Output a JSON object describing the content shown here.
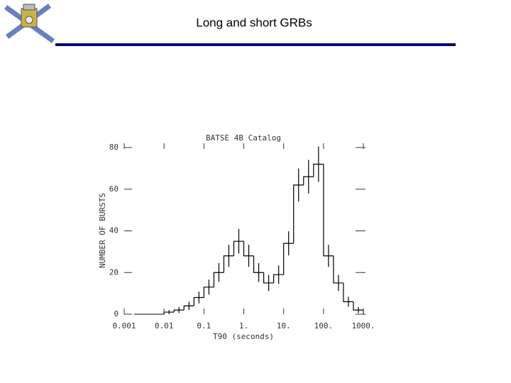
{
  "slide_title": "Long and short GRBs",
  "chart_data": {
    "type": "histogram",
    "title": "BATSE 4B Catalog",
    "x_label": "T90 (seconds)",
    "y_label": "NUMBER OF BURSTS",
    "x_log": true,
    "bins": [
      0.01,
      0.01778,
      0.03162,
      0.05623,
      0.1,
      0.1778,
      0.3162,
      0.5623,
      1,
      1.778,
      3.162,
      5.623,
      10,
      17.78,
      31.62,
      56.23,
      100,
      177.8,
      316.2,
      562.3,
      1000
    ],
    "counts": [
      1,
      2,
      4,
      8,
      13,
      20,
      28,
      35,
      28,
      20,
      15,
      19,
      34,
      62,
      66,
      72,
      28,
      15,
      6,
      2
    ],
    "errors": [
      1,
      1.4,
      2,
      2.8,
      3.6,
      4.5,
      5.3,
      5.9,
      5.3,
      4.5,
      3.9,
      4.4,
      5.8,
      7.9,
      8.1,
      8.5,
      5.3,
      3.9,
      2.4,
      1.4
    ],
    "color": "#000000",
    "xlim": [
      0.001,
      1000
    ],
    "xticks": [
      0.001,
      0.01,
      0.1,
      {
        "value": 1,
        "label": "1."
      },
      {
        "value": 10,
        "label": "10."
      },
      {
        "value": 100,
        "label": "100."
      },
      {
        "value": 1000,
        "label": "1000."
      }
    ],
    "ylim": [
      0,
      80
    ],
    "yticks": [
      0,
      20,
      40,
      60,
      80
    ]
  }
}
